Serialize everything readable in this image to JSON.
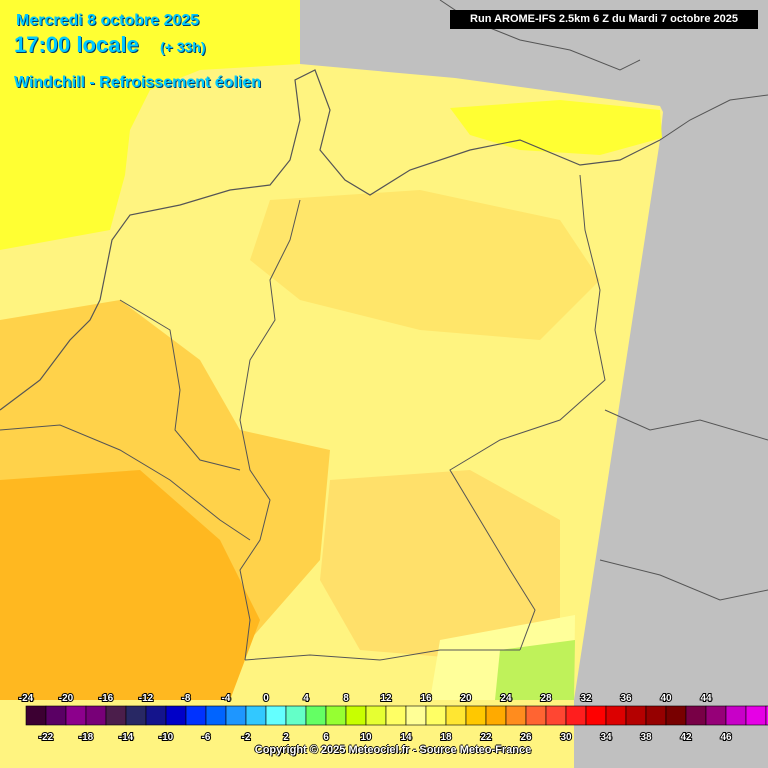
{
  "header": {
    "date": "Mercredi 8 octobre 2025",
    "time": "17:00 locale",
    "offset": "(+ 33h)",
    "product": "Windchill - Refroissement éolien",
    "run": "Run AROME-IFS 2.5km 6 Z du Mardi 7 octobre 2025"
  },
  "colors": {
    "no_data": "#c0c0c0",
    "border": "#555555",
    "text_accent": "#00c8ff"
  },
  "legend": {
    "labels_top": [
      "-24",
      "-20",
      "-16",
      "-12",
      "-8",
      "-4",
      "0",
      "4",
      "8",
      "12",
      "16",
      "20",
      "24",
      "28",
      "32",
      "36",
      "40",
      "44"
    ],
    "labels_bottom": [
      "-22",
      "-18",
      "-14",
      "-10",
      "-6",
      "-2",
      "2",
      "6",
      "10",
      "14",
      "18",
      "22",
      "26",
      "30",
      "34",
      "38",
      "42",
      "46"
    ],
    "colors": [
      "#3c0032",
      "#5a0064",
      "#8c008c",
      "#780078",
      "#4b1e4b",
      "#282864",
      "#14148c",
      "#0000c8",
      "#0032ff",
      "#0064ff",
      "#1e96ff",
      "#32c8ff",
      "#64ffff",
      "#64ffc8",
      "#64ff64",
      "#96ff32",
      "#c8ff00",
      "#e6ff32",
      "#ffff64",
      "#ffff96",
      "#ffff64",
      "#ffe632",
      "#ffc800",
      "#ffaa00",
      "#ff8c1e",
      "#ff6432",
      "#ff4632",
      "#ff1e1e",
      "#ff0000",
      "#dc0000",
      "#b40000",
      "#960000",
      "#780000",
      "#780046",
      "#960078",
      "#c800c8",
      "#e600e6",
      "#ff00ff",
      "#ff64ff",
      "#ffa0ff"
    ]
  },
  "copyright": "Copyright © 2025 Meteociel.fr - Source Meteo-France"
}
